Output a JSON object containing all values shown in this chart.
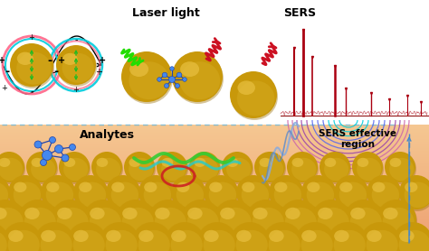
{
  "title_laser": "Laser light",
  "title_sers": "SERS",
  "title_analytes": "Analytes",
  "title_sers_region": "SERS effective\nregion",
  "bg_top": "#ffffff",
  "gold_color": "#c8980a",
  "gold_dark": "#9a7008",
  "gold_highlight": "#e8c040",
  "gold_mid": "#d4aa20",
  "cyan_ring": "#00ccdd",
  "pink_ring": "#ff6688",
  "green_ring": "#44cc44",
  "wave_green": "#22dd00",
  "wave_red": "#cc1122",
  "sers_peak_color": "#aa0011",
  "fp_cyan": "#00ccdd",
  "fp_blue": "#5566ee",
  "fp_purple": "#9944aa",
  "dashed_color": "#88bbcc",
  "bottom_bg_color": "#f0a87a",
  "bottom_bg_top": "#f5c090",
  "molecule_blue": "#4488ee",
  "molecule_blue_dark": "#2244aa"
}
